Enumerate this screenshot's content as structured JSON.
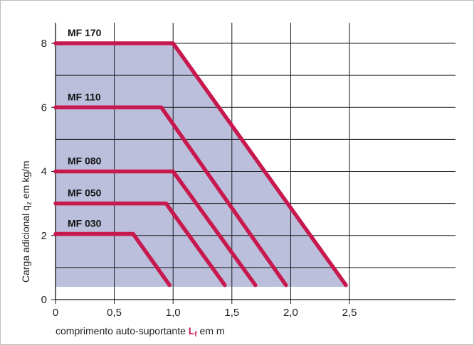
{
  "chart_data": {
    "type": "line",
    "title": "",
    "xlabel_prefix": "comprimento auto-suportante ",
    "xlabel_symbol": "L",
    "xlabel_symbol_sub": "f",
    "xlabel_suffix": " em m",
    "ylabel_prefix": "Carga adicional q",
    "ylabel_sub": "z",
    "ylabel_suffix": " em kg/m",
    "xlim": [
      0,
      2.75
    ],
    "ylim": [
      0,
      8.8
    ],
    "x_ticks": [
      {
        "value": 0,
        "label": "0"
      },
      {
        "value": 0.5,
        "label": "0,5"
      },
      {
        "value": 1.0,
        "label": "1,0"
      },
      {
        "value": 1.5,
        "label": "1,5"
      },
      {
        "value": 2.0,
        "label": "2,0"
      },
      {
        "value": 2.5,
        "label": "2,5"
      }
    ],
    "y_ticks": [
      {
        "value": 0,
        "label": "0"
      },
      {
        "value": 2,
        "label": "2"
      },
      {
        "value": 4,
        "label": "4"
      },
      {
        "value": 6,
        "label": "6"
      },
      {
        "value": 8,
        "label": "8"
      }
    ],
    "grid_x": [
      0.5,
      1.0,
      1.5,
      2.0,
      2.5
    ],
    "grid_y": [
      1,
      2,
      3,
      4,
      5,
      6,
      7,
      8
    ],
    "shaded_region": {
      "x": [
        0,
        1.0,
        2.47,
        0
      ],
      "y": [
        8,
        8,
        0.4,
        0.4
      ]
    },
    "series": [
      {
        "name": "MF 170",
        "x": [
          0,
          1.0,
          2.47
        ],
        "y": [
          8,
          8,
          0.45
        ]
      },
      {
        "name": "MF 110",
        "x": [
          0,
          0.9,
          1.96
        ],
        "y": [
          6,
          6,
          0.45
        ]
      },
      {
        "name": "MF 080",
        "x": [
          0,
          1.0,
          1.7
        ],
        "y": [
          4,
          4,
          0.45
        ]
      },
      {
        "name": "MF 050",
        "x": [
          0,
          0.94,
          1.44
        ],
        "y": [
          3,
          3,
          0.45
        ]
      },
      {
        "name": "MF 030",
        "x": [
          0,
          0.66,
          0.97
        ],
        "y": [
          2.05,
          2.05,
          0.45
        ]
      }
    ],
    "colors": {
      "line": "#c8194f",
      "fill": "#bcbfdc",
      "grid": "#1a1a1a"
    }
  }
}
